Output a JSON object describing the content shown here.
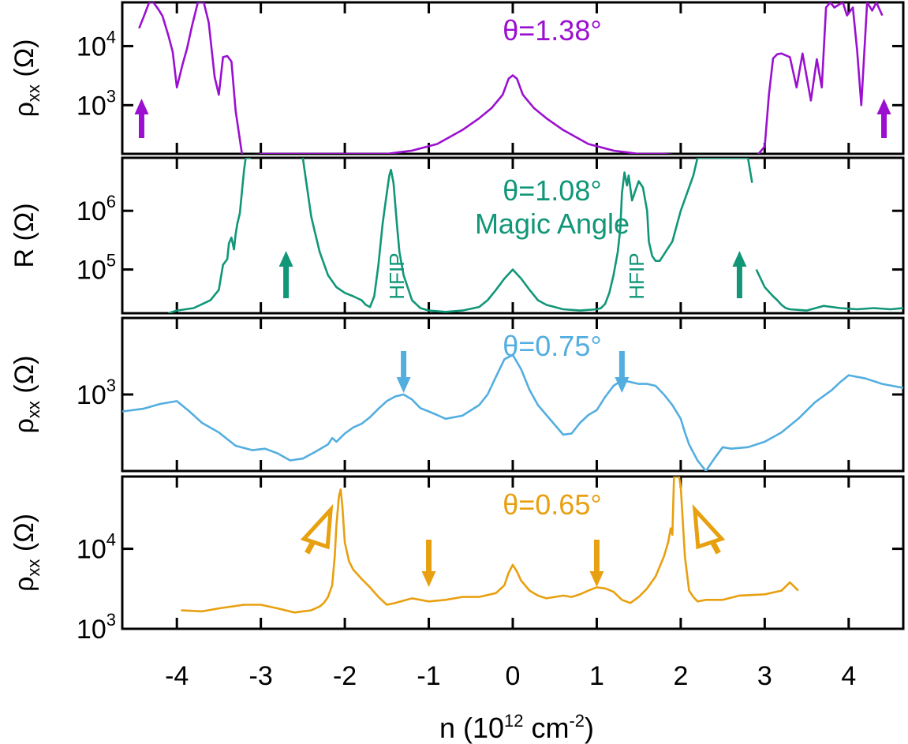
{
  "chart_data": {
    "type": "line",
    "xlabel": "n (10",
    "xlabel_exp": "12",
    "xlabel_unit": " cm",
    "xlabel_unit_exp": "-2",
    "xlabel_close": ")",
    "xticks": [
      -4,
      -3,
      -2,
      -1,
      0,
      1,
      2,
      3,
      4
    ],
    "xticklabels": [
      "-4",
      "-3",
      "-2",
      "-1",
      "0",
      "1",
      "2",
      "3",
      "4"
    ],
    "xlim": [
      -4.65,
      4.65
    ],
    "yscale": "log",
    "panels": [
      {
        "id": "p138",
        "title": "θ=1.38°",
        "color": "#9B10D0",
        "ylabel": "ρxx (Ω)",
        "ylim": [
          150,
          55000
        ],
        "yticks": [
          {
            "base": "10",
            "exp": "4",
            "value": 10000
          },
          {
            "base": "10",
            "exp": "3",
            "value": 1000
          }
        ],
        "series": [
          {
            "x": [
              -4.45,
              -4.4,
              -4.33,
              -4.28,
              -4.22,
              -4.17,
              -4.1,
              -4.05,
              -4.0,
              -3.93,
              -3.88,
              -3.82,
              -3.75,
              -3.68,
              -3.62,
              -3.55,
              -3.5,
              -3.45,
              -3.4,
              -3.35,
              -3.3,
              -3.22,
              -3.15,
              -3.08,
              -3.0,
              -2.5,
              -2.0,
              -1.5,
              -1.2,
              -0.9,
              -0.6,
              -0.4,
              -0.25,
              -0.12,
              -0.05,
              0.0,
              0.05,
              0.12,
              0.25,
              0.4,
              0.6,
              0.9,
              1.2,
              1.5,
              1.8,
              2.0,
              2.5,
              2.9,
              3.0,
              3.05,
              3.1,
              3.15,
              3.2,
              3.3,
              3.38,
              3.45,
              3.5,
              3.55,
              3.62,
              3.68,
              3.73,
              3.78,
              3.83,
              3.88,
              3.93,
              3.98,
              4.05,
              4.1,
              4.15,
              4.22,
              4.28,
              4.33,
              4.4
            ],
            "y": [
              20000,
              30000,
              55000,
              55000,
              42000,
              32000,
              15000,
              8000,
              2000,
              5000,
              9000,
              22000,
              55000,
              55000,
              25000,
              3000,
              1500,
              6500,
              6800,
              5500,
              800,
              100,
              100,
              100,
              150,
              150,
              150,
              150,
              170,
              220,
              380,
              600,
              900,
              1500,
              2800,
              3200,
              2800,
              1500,
              900,
              600,
              380,
              220,
              170,
              150,
              150,
              140,
              130,
              100,
              200,
              1500,
              6200,
              7300,
              7500,
              6500,
              2000,
              7500,
              3000,
              1200,
              6000,
              2000,
              45000,
              55000,
              45000,
              50000,
              55000,
              33000,
              45000,
              8500,
              1000,
              55000,
              40000,
              55000,
              33000
            ]
          }
        ],
        "annotations": [
          {
            "type": "arrow",
            "direction": "up",
            "x": -4.42
          },
          {
            "type": "arrow",
            "direction": "up",
            "x": 4.42
          }
        ]
      },
      {
        "id": "p108",
        "title": "θ=1.08°",
        "subtitle": "Magic Angle",
        "color": "#119678",
        "ylabel": "R (Ω)",
        "ylim": [
          18000,
          8000000
        ],
        "yticks": [
          {
            "base": "10",
            "exp": "6",
            "value": 1000000
          },
          {
            "base": "10",
            "exp": "5",
            "value": 100000
          }
        ],
        "series": [
          {
            "x": [
              -4.1,
              -4.0,
              -3.8,
              -3.6,
              -3.5,
              -3.45,
              -3.4,
              -3.38,
              -3.35,
              -3.32,
              -3.3,
              -3.28,
              -3.25,
              -3.22,
              -3.2,
              -3.18,
              -3.15,
              -3.12,
              -2.5,
              -2.48,
              -2.45,
              -2.4,
              -2.35,
              -2.3,
              -2.2,
              -2.1,
              -2.0,
              -1.9,
              -1.8,
              -1.75,
              -1.7,
              -1.65,
              -1.6,
              -1.55,
              -1.5,
              -1.47,
              -1.45,
              -1.42,
              -1.38,
              -1.35,
              -1.3,
              -1.2,
              -1.1,
              -1.0,
              -0.8,
              -0.6,
              -0.4,
              -0.3,
              -0.2,
              -0.1,
              0.0,
              0.1,
              0.2,
              0.3,
              0.4,
              0.6,
              0.8,
              1.0,
              1.05,
              1.1,
              1.15,
              1.2,
              1.25,
              1.28,
              1.3,
              1.33,
              1.36,
              1.38,
              1.42,
              1.46,
              1.5,
              1.55,
              1.6,
              1.62,
              1.66,
              1.7,
              1.75,
              1.8,
              1.9,
              2.0,
              2.1,
              2.15,
              2.2,
              2.3,
              2.4,
              2.5,
              2.6,
              2.7,
              2.8,
              2.85,
              2.9,
              3.0,
              3.1,
              3.15,
              3.2,
              3.25,
              3.3,
              3.5,
              3.7,
              3.9,
              4.1,
              4.3,
              4.5,
              4.65
            ],
            "y": [
              18000,
              20000,
              22000,
              30000,
              45000,
              120000,
              150000,
              280000,
              350000,
              220000,
              400000,
              600000,
              900000,
              2500000,
              5000000,
              8000000,
              8000000,
              8000000,
              8000000,
              5000000,
              2500000,
              800000,
              400000,
              200000,
              80000,
              50000,
              40000,
              35000,
              30000,
              25000,
              23000,
              35000,
              120000,
              600000,
              2000000,
              4000000,
              5000000,
              3000000,
              600000,
              200000,
              80000,
              30000,
              22000,
              20000,
              19000,
              20000,
              23000,
              30000,
              45000,
              70000,
              100000,
              70000,
              45000,
              30000,
              25000,
              21000,
              20000,
              21000,
              22000,
              26000,
              40000,
              80000,
              200000,
              500000,
              2000000,
              4500000,
              2700000,
              4000000,
              1500000,
              2200000,
              3200000,
              2500000,
              1000000,
              300000,
              170000,
              140000,
              140000,
              180000,
              300000,
              1000000,
              2500000,
              4000000,
              8000000,
              8000000,
              8000000,
              8000000,
              8000000,
              8000000,
              8000000,
              3000000,
              100000,
              50000,
              35000,
              30000,
              25000,
              22000,
              21000,
              20000,
              24000,
              22000,
              21000,
              22000,
              21000,
              22000
            ],
            "gap_after": 17,
            "gap_after2": 89
          }
        ],
        "annotations": [
          {
            "type": "arrow",
            "direction": "up",
            "x": -2.7
          },
          {
            "type": "arrow",
            "direction": "up",
            "x": 2.7
          },
          {
            "type": "text",
            "text": "HFIP",
            "x": -1.43
          },
          {
            "type": "text",
            "text": "HFIP",
            "x": 1.43
          }
        ]
      },
      {
        "id": "p075",
        "title": "θ=0.75°",
        "color": "#53AEE0",
        "ylabel": "ρxx (Ω)",
        "ylim": [
          200,
          5000
        ],
        "yticks": [
          {
            "base": "10",
            "exp": "3",
            "value": 1000
          }
        ],
        "series": [
          {
            "x": [
              -4.65,
              -4.4,
              -4.2,
              -4.0,
              -3.85,
              -3.7,
              -3.5,
              -3.3,
              -3.1,
              -2.95,
              -2.8,
              -2.65,
              -2.5,
              -2.35,
              -2.2,
              -2.15,
              -2.1,
              -2.0,
              -1.9,
              -1.8,
              -1.7,
              -1.6,
              -1.5,
              -1.4,
              -1.3,
              -1.2,
              -1.1,
              -1.0,
              -0.9,
              -0.8,
              -0.6,
              -0.4,
              -0.3,
              -0.2,
              -0.1,
              0.0,
              0.1,
              0.2,
              0.3,
              0.4,
              0.6,
              0.7,
              0.8,
              0.9,
              1.0,
              1.1,
              1.2,
              1.3,
              1.4,
              1.5,
              1.6,
              1.7,
              1.8,
              1.9,
              2.0,
              2.05,
              2.1,
              2.2,
              2.3,
              2.4,
              2.5,
              2.6,
              2.8,
              3.0,
              3.2,
              3.4,
              3.6,
              3.8,
              3.9,
              4.0,
              4.2,
              4.4,
              4.65
            ],
            "y": [
              700,
              740,
              820,
              870,
              700,
              550,
              450,
              340,
              310,
              320,
              290,
              250,
              260,
              300,
              350,
              400,
              370,
              440,
              500,
              540,
              620,
              740,
              870,
              960,
              1000,
              900,
              750,
              700,
              650,
              600,
              640,
              800,
              1000,
              1450,
              2100,
              2300,
              1700,
              1100,
              800,
              650,
              430,
              440,
              550,
              650,
              720,
              950,
              1200,
              1350,
              1300,
              1250,
              1250,
              1200,
              1000,
              800,
              600,
              450,
              350,
              250,
              200,
              260,
              330,
              320,
              330,
              370,
              450,
              600,
              850,
              1100,
              1300,
              1500,
              1400,
              1250,
              1150
            ]
          }
        ],
        "annotations": [
          {
            "type": "arrow",
            "direction": "down",
            "x": -1.3
          },
          {
            "type": "arrow",
            "direction": "down",
            "x": 1.3
          }
        ]
      },
      {
        "id": "p065",
        "title": "θ=0.65°",
        "color": "#E8A010",
        "ylabel": "ρxx (Ω)",
        "ylim": [
          1000,
          80000
        ],
        "yticks": [
          {
            "base": "10",
            "exp": "4",
            "value": 10000
          },
          {
            "base": "10",
            "exp": "3",
            "value": 1000
          }
        ],
        "series": [
          {
            "x": [
              -3.95,
              -3.7,
              -3.5,
              -3.2,
              -3.0,
              -2.8,
              -2.6,
              -2.4,
              -2.3,
              -2.25,
              -2.2,
              -2.15,
              -2.12,
              -2.1,
              -2.07,
              -2.05,
              -2.03,
              -2.0,
              -1.95,
              -1.9,
              -1.8,
              -1.7,
              -1.6,
              -1.5,
              -1.4,
              -1.3,
              -1.2,
              -1.1,
              -1.0,
              -0.8,
              -0.6,
              -0.4,
              -0.2,
              -0.1,
              -0.05,
              0.0,
              0.05,
              0.1,
              0.2,
              0.3,
              0.4,
              0.5,
              0.6,
              0.7,
              0.8,
              0.9,
              1.0,
              1.1,
              1.2,
              1.3,
              1.4,
              1.5,
              1.6,
              1.7,
              1.8,
              1.85,
              1.88,
              1.9,
              1.92,
              1.95,
              1.98,
              2.0,
              2.05,
              2.1,
              2.15,
              2.2,
              2.3,
              2.5,
              2.7,
              3.0,
              3.2,
              3.3,
              3.4
            ],
            "y": [
              1700,
              1650,
              1800,
              2000,
              2000,
              1800,
              1600,
              1700,
              1900,
              2100,
              2500,
              3500,
              8000,
              20000,
              45000,
              55000,
              35000,
              12000,
              7000,
              5500,
              4200,
              3300,
              2500,
              2000,
              2100,
              2250,
              2400,
              2300,
              2200,
              2300,
              2500,
              2500,
              2800,
              3500,
              5000,
              6300,
              5200,
              4000,
              3000,
              2600,
              2400,
              2500,
              2600,
              2500,
              2700,
              3000,
              3300,
              3200,
              2900,
              2300,
              2100,
              2500,
              3200,
              4500,
              8000,
              12000,
              18000,
              15000,
              80000,
              80000,
              80000,
              60000,
              8000,
              3000,
              2500,
              2200,
              2300,
              2300,
              2600,
              2700,
              3000,
              3800,
              3000
            ]
          }
        ],
        "annotations": [
          {
            "type": "arrow",
            "direction": "down",
            "x": -1.0
          },
          {
            "type": "arrow",
            "direction": "down",
            "x": 1.0
          },
          {
            "type": "hollow-arrow",
            "direction": "up-right",
            "x": -2.2
          },
          {
            "type": "hollow-arrow",
            "direction": "up-left",
            "x": 2.2
          }
        ]
      }
    ]
  }
}
